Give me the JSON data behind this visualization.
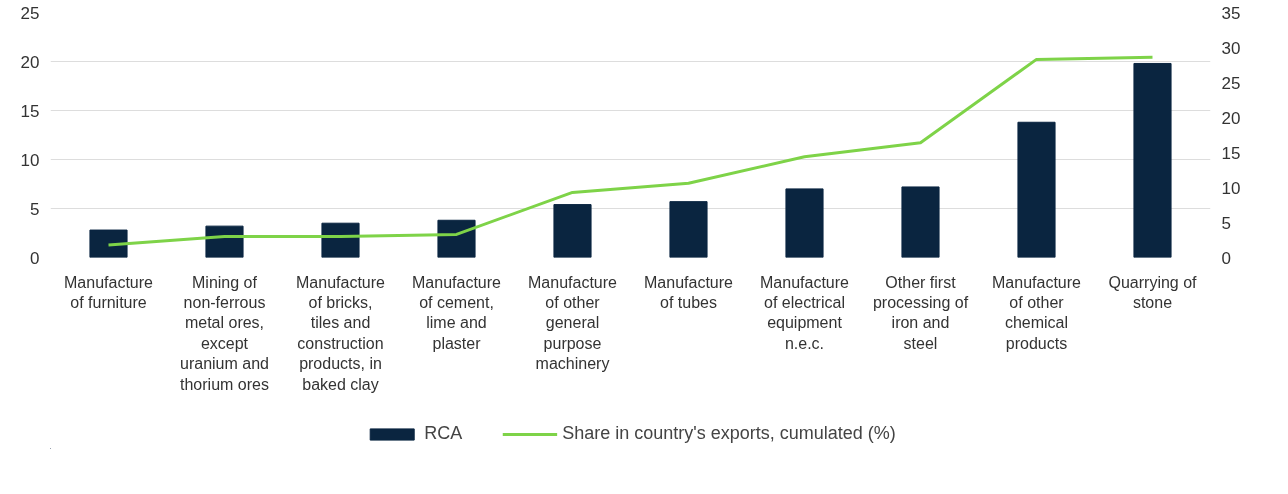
{
  "chart_data": {
    "type": "bar",
    "categories": [
      "Manufacture of furniture",
      "Mining of non-ferrous metal ores, except uranium and thorium ores",
      "Manufacture of bricks, tiles and construction products, in baked clay",
      "Manufacture of cement, lime and plaster",
      "Manufacture of other general purpose machinery",
      "Manufacture of tubes",
      "Manufacture of electrical equipment n.e.c.",
      "Other first processing of iron and steel",
      "Manufacture of other chemical products",
      "Quarrying of stone"
    ],
    "series": [
      {
        "name": "RCA",
        "color": "#0a2540",
        "values": [
          2.8,
          3.2,
          3.5,
          3.8,
          5.4,
          5.7,
          7.0,
          7.2,
          13.8,
          19.8
        ]
      },
      {
        "name": "Share in country's exports, cumulated (%)",
        "type": "line",
        "axis": "y2",
        "color": "#7ed348",
        "values": [
          1.8,
          3.0,
          3.0,
          3.3,
          9.3,
          10.6,
          14.4,
          16.4,
          28.3,
          28.6
        ]
      }
    ],
    "ylim": [
      0,
      25
    ],
    "yticks": [
      0,
      5,
      10,
      15,
      20,
      25
    ],
    "y2lim": [
      0,
      35
    ],
    "y2ticks": [
      0,
      5,
      10,
      15,
      20,
      25,
      30,
      35
    ],
    "grid": "y",
    "legend": "bottom",
    "marker": "none",
    "line_style": "solid"
  }
}
